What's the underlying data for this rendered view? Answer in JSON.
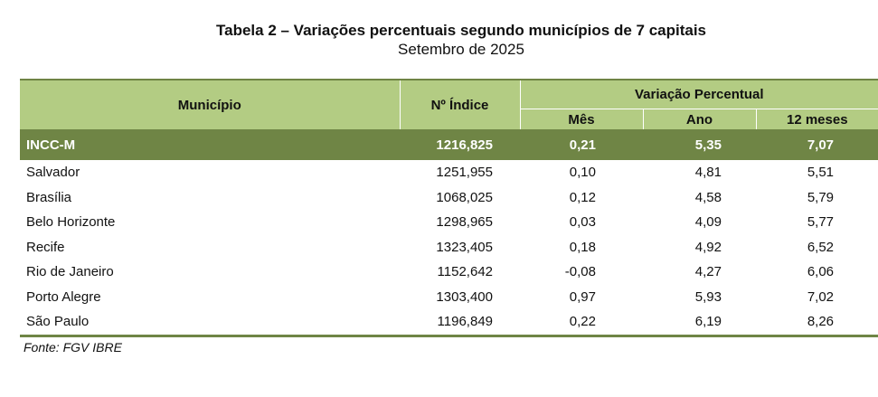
{
  "header": {
    "title": "Tabela 2 – Variações percentuais segundo municípios de 7 capitais",
    "subtitle": "Setembro de 2025"
  },
  "table": {
    "columns": {
      "municipio": "Município",
      "indice": "Nº Índice",
      "variacao": "Variação Percentual",
      "mes": "Mês",
      "ano": "Ano",
      "doze_meses": "12 meses"
    },
    "summary": {
      "name": "INCC-M",
      "indice": "1216,825",
      "mes": "0,21",
      "ano": "5,35",
      "doze_meses": "7,07"
    },
    "rows": [
      {
        "name": "Salvador",
        "indice": "1251,955",
        "mes": "0,10",
        "ano": "4,81",
        "doze_meses": "5,51"
      },
      {
        "name": "Brasília",
        "indice": "1068,025",
        "mes": "0,12",
        "ano": "4,58",
        "doze_meses": "5,79"
      },
      {
        "name": "Belo Horizonte",
        "indice": "1298,965",
        "mes": "0,03",
        "ano": "4,09",
        "doze_meses": "5,77"
      },
      {
        "name": "Recife",
        "indice": "1323,405",
        "mes": "0,18",
        "ano": "4,92",
        "doze_meses": "6,52"
      },
      {
        "name": "Rio de Janeiro",
        "indice": "1152,642",
        "mes": "-0,08",
        "ano": "4,27",
        "doze_meses": "6,06"
      },
      {
        "name": "Porto Alegre",
        "indice": "1303,400",
        "mes": "0,97",
        "ano": "5,93",
        "doze_meses": "7,02"
      },
      {
        "name": "São Paulo",
        "indice": "1196,849",
        "mes": "0,22",
        "ano": "6,19",
        "doze_meses": "8,26"
      }
    ]
  },
  "footer": {
    "source": "Fonte: FGV IBRE"
  },
  "colors": {
    "header_bg": "#b3cc83",
    "summary_bg": "#6f8545"
  }
}
